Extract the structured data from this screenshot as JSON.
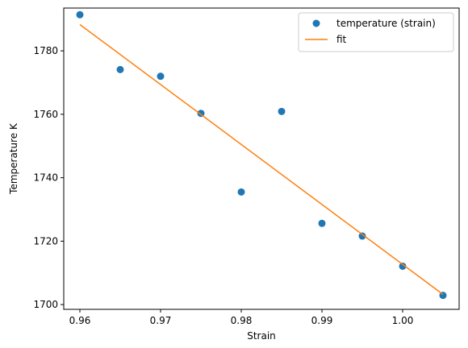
{
  "chart_data": {
    "type": "scatter",
    "title": "",
    "xlabel": "Strain",
    "ylabel": "Temperature K",
    "xlim": [
      0.958,
      1.007
    ],
    "ylim": [
      1698.5,
      1793.5
    ],
    "x_ticks": [
      0.96,
      0.97,
      0.98,
      0.99,
      1.0
    ],
    "x_tick_labels": [
      "0.96",
      "0.97",
      "0.98",
      "0.99",
      "1.00"
    ],
    "y_ticks": [
      1700,
      1720,
      1740,
      1760,
      1780
    ],
    "y_tick_labels": [
      "1700",
      "1720",
      "1740",
      "1760",
      "1780"
    ],
    "grid": false,
    "legend_position": "top-right",
    "series": [
      {
        "name": "temperature (strain)",
        "kind": "scatter",
        "color": "#1f77b4",
        "x": [
          0.96,
          0.965,
          0.97,
          0.975,
          0.98,
          0.985,
          0.99,
          0.995,
          1.0,
          1.005
        ],
        "y": [
          1791.4,
          1774.1,
          1772.0,
          1760.3,
          1735.5,
          1760.9,
          1725.6,
          1721.6,
          1712.1,
          1702.9
        ]
      },
      {
        "name": "fit",
        "kind": "line",
        "color": "#ff7f0e",
        "x": [
          0.96,
          1.005
        ],
        "y": [
          1788.3,
          1703.2
        ]
      }
    ]
  }
}
